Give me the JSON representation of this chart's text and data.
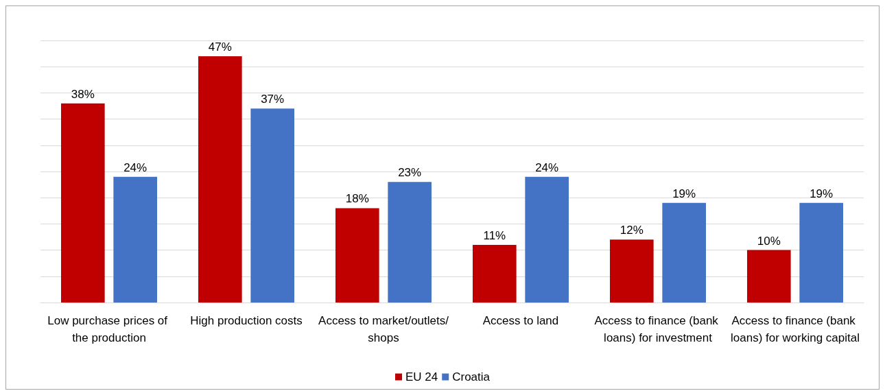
{
  "chart_data": {
    "type": "bar",
    "categories": [
      "Low purchase prices of the production",
      "High production costs",
      "Access to market/outlets/shops",
      "Access to land",
      "Access to finance (bank loans) for investment",
      "Access to finance (bank loans) for working capital"
    ],
    "series": [
      {
        "name": "EU 24",
        "color": "#c00000",
        "values": [
          38,
          47,
          18,
          11,
          12,
          10
        ],
        "value_labels": [
          "38%",
          "47%",
          "18%",
          "11%",
          "12%",
          "10%"
        ]
      },
      {
        "name": "Croatia",
        "color": "#4472c4",
        "values": [
          24,
          37,
          23,
          24,
          19,
          19
        ],
        "value_labels": [
          "24%",
          "37%",
          "23%",
          "24%",
          "19%",
          "19%"
        ]
      }
    ],
    "ylim": [
      0,
      50
    ],
    "yticks": [
      {
        "value": 0,
        "label": null
      },
      {
        "value": 5,
        "label": null
      },
      {
        "value": 10,
        "label": null
      },
      {
        "value": 15,
        "label": null
      },
      {
        "value": 20,
        "label": null
      },
      {
        "value": 25,
        "label": null
      },
      {
        "value": 30,
        "label": null
      },
      {
        "value": 35,
        "label": null
      },
      {
        "value": 40,
        "label": null
      },
      {
        "value": 45,
        "label": null
      },
      {
        "value": 50,
        "label": null
      }
    ],
    "grid": "y",
    "legend": "bottom",
    "tick_labels": "x"
  }
}
